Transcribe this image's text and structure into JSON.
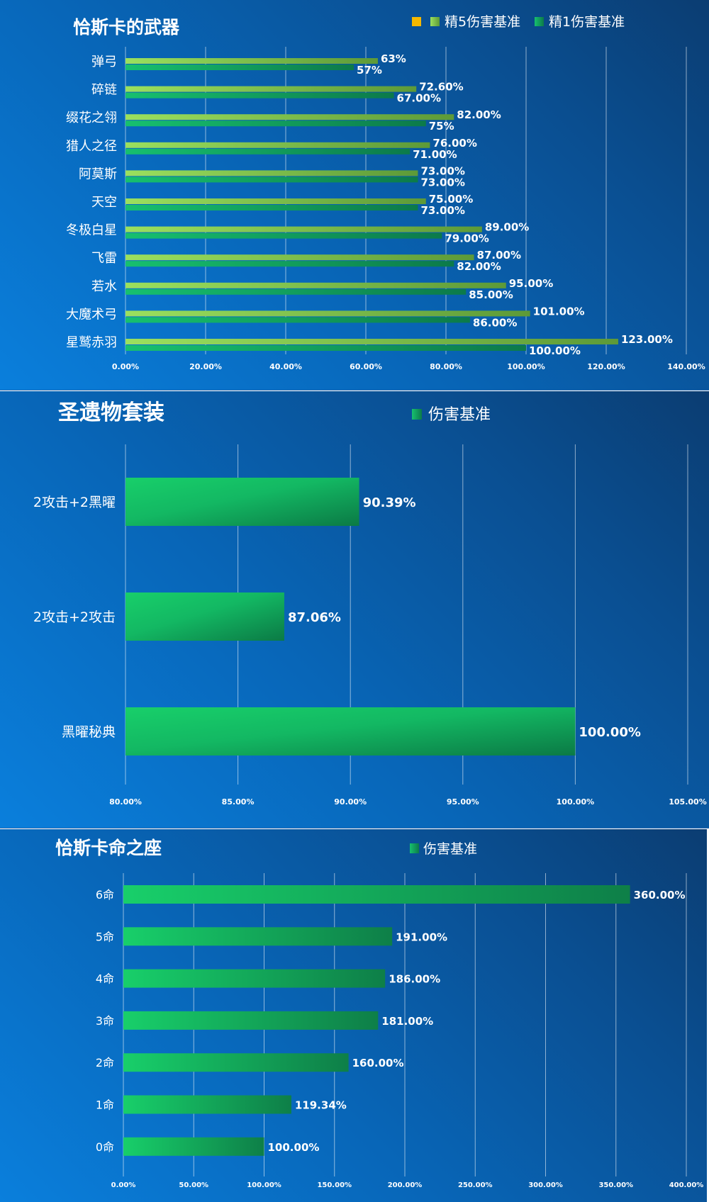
{
  "chart_data": [
    {
      "type": "bar",
      "orientation": "horizontal",
      "title": "恰斯卡的武器",
      "legend": [
        "",
        "精5伤害基准",
        "精1伤害基准"
      ],
      "legend_colors": [
        "#f5b800",
        "#8ed45a",
        "#12a86a"
      ],
      "categories": [
        "弹弓",
        "碎链",
        "缀花之翎",
        "猎人之径",
        "阿莫斯",
        "天空",
        "冬极白星",
        "飞雷",
        "若水",
        "大魔术弓",
        "星鹫赤羽"
      ],
      "series": [
        {
          "name": "精5伤害基准",
          "color": "#8ed45a",
          "values": [
            63,
            72.6,
            82,
            76,
            73,
            75,
            89,
            87,
            95,
            101,
            123
          ],
          "labels": [
            "63%",
            "72.60%",
            "82.00%",
            "76.00%",
            "73.00%",
            "75.00%",
            "89.00%",
            "87.00%",
            "95.00%",
            "101.00%",
            "123.00%"
          ]
        },
        {
          "name": "精1伤害基准",
          "color": "#12a86a",
          "values": [
            57,
            67,
            75,
            71,
            73,
            73,
            79,
            82,
            85,
            86,
            100
          ],
          "labels": [
            "57%",
            "67.00%",
            "75%",
            "71.00%",
            "73.00%",
            "73.00%",
            "79.00%",
            "82.00%",
            "85.00%",
            "86.00%",
            "100.00%"
          ]
        }
      ],
      "xlim": [
        0,
        140
      ],
      "xticks": [
        "0.00%",
        "20.00%",
        "40.00%",
        "60.00%",
        "80.00%",
        "100.00%",
        "120.00%",
        "140.00%"
      ],
      "grid": true,
      "legend_position": "top-right"
    },
    {
      "type": "bar",
      "orientation": "horizontal",
      "title": "圣遗物套装",
      "legend": [
        "伤害基准"
      ],
      "legend_colors": [
        "#12a86a"
      ],
      "categories": [
        "2攻击+2黑曜",
        "2攻击+2攻击",
        "黑曜秘典"
      ],
      "series": [
        {
          "name": "伤害基准",
          "color": "#15c466",
          "values": [
            90.39,
            87.06,
            100
          ],
          "labels": [
            "90.39%",
            "87.06%",
            "100.00%"
          ]
        }
      ],
      "xlim": [
        80,
        105
      ],
      "xticks": [
        "80.00%",
        "85.00%",
        "90.00%",
        "95.00%",
        "100.00%",
        "105.00%"
      ],
      "grid": true,
      "legend_position": "top-center"
    },
    {
      "type": "bar",
      "orientation": "horizontal",
      "title": "恰斯卡命之座",
      "legend": [
        "伤害基准"
      ],
      "legend_colors": [
        "#12a86a"
      ],
      "categories": [
        "6命",
        "5命",
        "4命",
        "3命",
        "2命",
        "1命",
        "0命"
      ],
      "series": [
        {
          "name": "伤害基准",
          "color": "#15c466",
          "values": [
            360,
            191,
            186,
            181,
            160,
            119.34,
            100
          ],
          "labels": [
            "360.00%",
            "191.00%",
            "186.00%",
            "181.00%",
            "160.00%",
            "119.34%",
            "100.00%"
          ]
        }
      ],
      "xlim": [
        0,
        400
      ],
      "xticks": [
        "0.00%",
        "50.00%",
        "100.00%",
        "150.00%",
        "200.00%",
        "250.00%",
        "300.00%",
        "350.00%",
        "400.00%"
      ],
      "grid": true,
      "legend_position": "top-center"
    }
  ]
}
